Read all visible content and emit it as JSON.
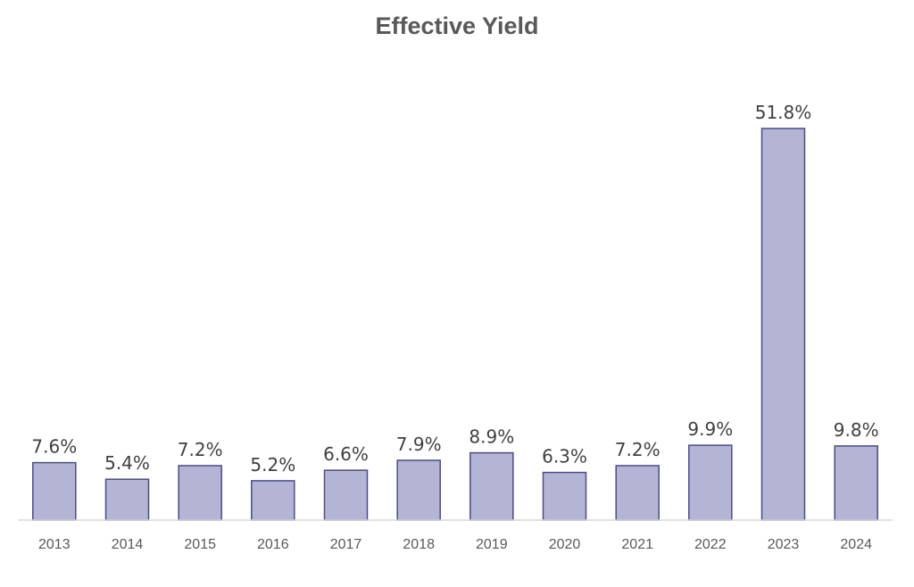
{
  "chart_data": {
    "type": "bar",
    "title": "Effective Yield",
    "xlabel": "",
    "ylabel": "",
    "categories": [
      "2013",
      "2014",
      "2015",
      "2016",
      "2017",
      "2018",
      "2019",
      "2020",
      "2021",
      "2022",
      "2023",
      "2024"
    ],
    "values": [
      7.6,
      5.4,
      7.2,
      5.2,
      6.6,
      7.9,
      8.9,
      6.3,
      7.2,
      9.9,
      51.8,
      9.8
    ],
    "data_labels": [
      "7.6%",
      "5.4%",
      "7.2%",
      "5.2%",
      "6.6%",
      "7.9%",
      "8.9%",
      "6.3%",
      "7.2%",
      "9.9%",
      "51.8%",
      "9.8%"
    ],
    "value_unit": "%",
    "ylim": [
      0,
      51.8
    ],
    "grid": false,
    "legend": "none",
    "colors": {
      "bar_fill": "#b4b5d5",
      "bar_stroke": "#4b4a8c",
      "axis": "#d9d9d9"
    }
  }
}
